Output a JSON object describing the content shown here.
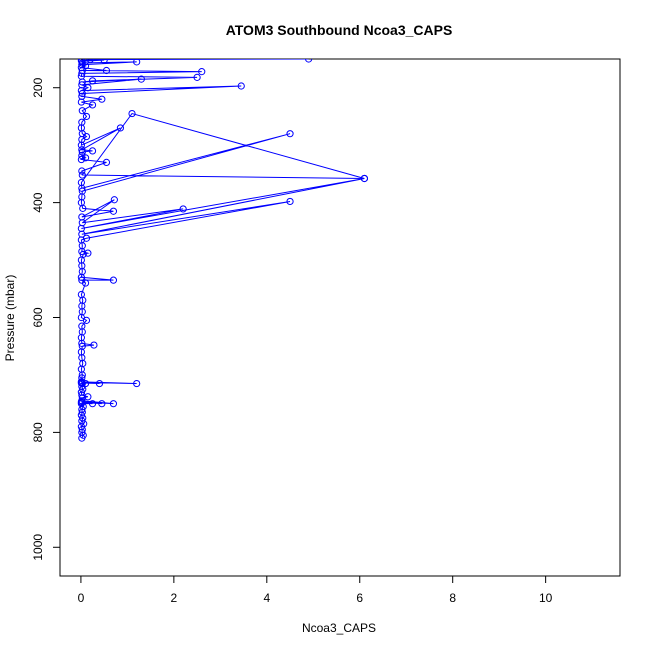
{
  "chart_data": {
    "type": "line",
    "title": "ATOM3 Southbound Ncoa3_CAPS",
    "xlabel": "Ncoa3_CAPS",
    "ylabel": "Pressure (mbar)",
    "xlim": [
      -0.45,
      11.6
    ],
    "ylim": [
      1050,
      150
    ],
    "y_reversed": true,
    "x_ticks": [
      0,
      2,
      4,
      6,
      8,
      10
    ],
    "y_ticks": [
      200,
      400,
      600,
      800,
      1000
    ],
    "grid": false,
    "legend": "none",
    "series_color": "#0000ff",
    "marker": "open-circle",
    "series": [
      {
        "values": [
          [
            0.02,
            810
          ],
          [
            0.05,
            805
          ],
          [
            0.02,
            800
          ],
          [
            0.03,
            795
          ],
          [
            0.01,
            790
          ],
          [
            0.06,
            785
          ],
          [
            0.02,
            780
          ],
          [
            0.04,
            775
          ],
          [
            0.01,
            770
          ],
          [
            0.03,
            765
          ],
          [
            0.02,
            760
          ],
          [
            0.05,
            755
          ],
          [
            0.01,
            750
          ],
          [
            0.25,
            750
          ],
          [
            0.02,
            748
          ],
          [
            0.45,
            750
          ],
          [
            0.01,
            747
          ],
          [
            0.7,
            750
          ],
          [
            0.02,
            745
          ],
          [
            0.03,
            740
          ],
          [
            0.15,
            738
          ],
          [
            0.02,
            735
          ],
          [
            0.01,
            730
          ],
          [
            0.04,
            725
          ],
          [
            0.02,
            720
          ],
          [
            0.03,
            715
          ],
          [
            0.1,
            715
          ],
          [
            0.01,
            714
          ],
          [
            0.4,
            715
          ],
          [
            0.02,
            713
          ],
          [
            1.2,
            715
          ],
          [
            0.01,
            712
          ],
          [
            0.02,
            705
          ],
          [
            0.03,
            700
          ],
          [
            0.01,
            690
          ],
          [
            0.04,
            680
          ],
          [
            0.02,
            670
          ],
          [
            0.01,
            660
          ],
          [
            0.03,
            650
          ],
          [
            0.28,
            648
          ],
          [
            0.02,
            645
          ],
          [
            0.01,
            635
          ],
          [
            0.03,
            625
          ],
          [
            0.02,
            615
          ],
          [
            0.12,
            605
          ],
          [
            0.01,
            600
          ],
          [
            0.03,
            590
          ],
          [
            0.02,
            580
          ],
          [
            0.04,
            570
          ],
          [
            0.01,
            560
          ],
          [
            0.1,
            540
          ],
          [
            0.02,
            535
          ],
          [
            0.7,
            535
          ],
          [
            0.01,
            530
          ],
          [
            0.03,
            520
          ],
          [
            0.02,
            510
          ],
          [
            0.01,
            500
          ],
          [
            0.05,
            490
          ],
          [
            0.15,
            488
          ],
          [
            0.02,
            485
          ],
          [
            0.03,
            475
          ],
          [
            0.01,
            465
          ],
          [
            0.12,
            462
          ],
          [
            4.5,
            398
          ],
          [
            0.02,
            455
          ],
          [
            6.1,
            358
          ],
          [
            0.01,
            445
          ],
          [
            2.2,
            411
          ],
          [
            0.03,
            435
          ],
          [
            0.72,
            395
          ],
          [
            0.02,
            425
          ],
          [
            0.7,
            415
          ],
          [
            0.04,
            410
          ],
          [
            0.01,
            400
          ],
          [
            0.02,
            390
          ],
          [
            0.03,
            380
          ],
          [
            4.5,
            280
          ],
          [
            0.02,
            375
          ],
          [
            0.01,
            365
          ],
          [
            1.1,
            245
          ],
          [
            6.1,
            358
          ],
          [
            0.03,
            352
          ],
          [
            0.02,
            345
          ],
          [
            0.55,
            330
          ],
          [
            0.01,
            325
          ],
          [
            0.1,
            322
          ],
          [
            0.02,
            318
          ],
          [
            0.03,
            312
          ],
          [
            0.25,
            310
          ],
          [
            0.02,
            308
          ],
          [
            0.85,
            270
          ],
          [
            0.01,
            300
          ],
          [
            0.02,
            290
          ],
          [
            0.12,
            285
          ],
          [
            0.03,
            280
          ],
          [
            0.01,
            270
          ],
          [
            0.02,
            260
          ],
          [
            0.12,
            250
          ],
          [
            0.03,
            240
          ],
          [
            0.25,
            230
          ],
          [
            0.01,
            225
          ],
          [
            0.45,
            220
          ],
          [
            0.02,
            215
          ],
          [
            0.03,
            210
          ],
          [
            3.45,
            197
          ],
          [
            0.01,
            205
          ],
          [
            0.15,
            200
          ],
          [
            0.02,
            195
          ],
          [
            1.3,
            185
          ],
          [
            0.03,
            190
          ],
          [
            0.25,
            188
          ],
          [
            2.5,
            182
          ],
          [
            0.01,
            180
          ],
          [
            0.02,
            175
          ],
          [
            2.6,
            172
          ],
          [
            0.03,
            170
          ],
          [
            0.55,
            170
          ],
          [
            0.01,
            165
          ],
          [
            0.1,
            162
          ],
          [
            0.02,
            160
          ],
          [
            1.2,
            155
          ],
          [
            0.03,
            157
          ],
          [
            0.02,
            154
          ],
          [
            0.5,
            152
          ],
          [
            0.01,
            153
          ],
          [
            0.2,
            151
          ],
          [
            4.9,
            150
          ]
        ]
      }
    ]
  }
}
